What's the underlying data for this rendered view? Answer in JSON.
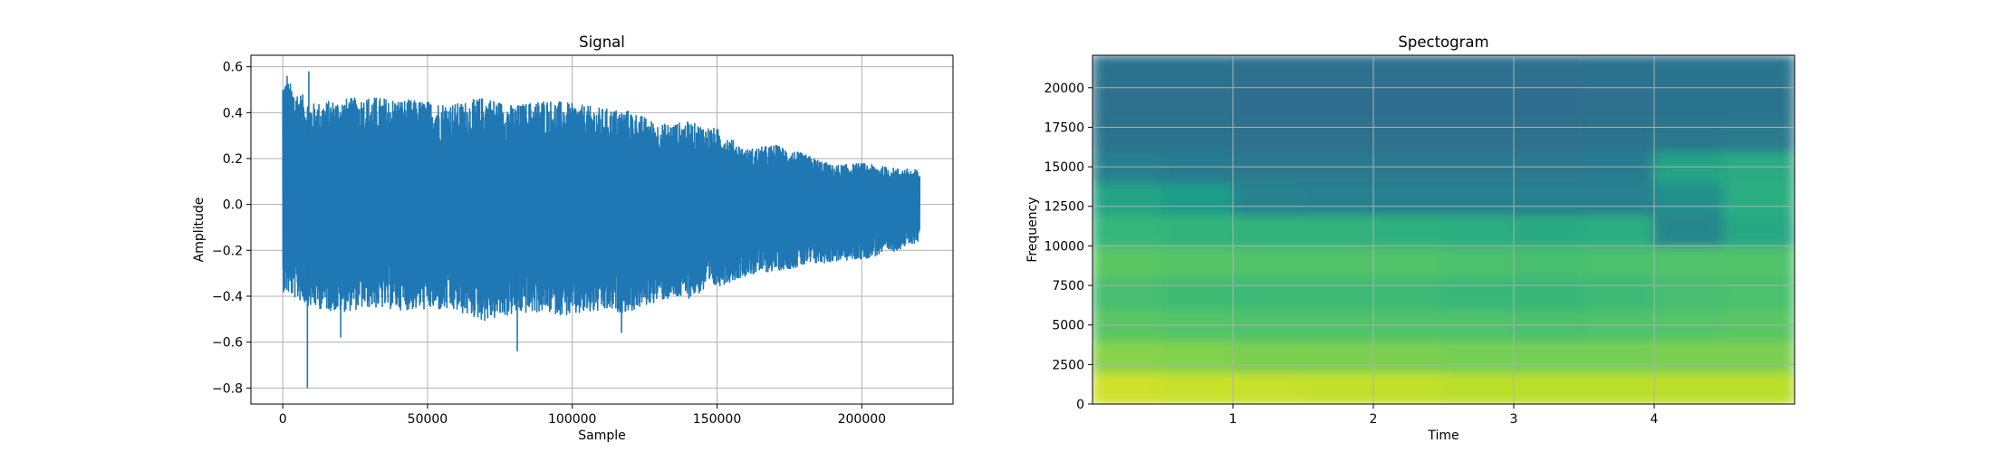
{
  "chart_data": [
    {
      "type": "line",
      "title": "Signal",
      "xlabel": "Sample",
      "ylabel": "Amplitude",
      "xlim": [
        -11000,
        231500
      ],
      "ylim": [
        -0.87,
        0.65
      ],
      "grid": true,
      "color": "#1f77b4",
      "xticks": [
        0,
        50000,
        100000,
        150000,
        200000
      ],
      "xtick_labels": [
        "0",
        "50000",
        "100000",
        "150000",
        "200000"
      ],
      "yticks": [
        -0.8,
        -0.6,
        -0.4,
        -0.2,
        0.0,
        0.2,
        0.4,
        0.6
      ],
      "ytick_labels": [
        "−0.8",
        "−0.6",
        "−0.4",
        "−0.2",
        "0.0",
        "0.2",
        "0.4",
        "0.6"
      ],
      "series": [
        {
          "x": [
            0,
            10000,
            20000,
            30000,
            40000,
            50000,
            60000,
            70000,
            80000,
            90000,
            100000,
            110000,
            120000,
            130000,
            140000,
            150000,
            160000,
            170000,
            180000,
            190000,
            200000,
            210000,
            220000
          ],
          "upper_envelope": [
            0.56,
            0.44,
            0.46,
            0.47,
            0.46,
            0.45,
            0.44,
            0.47,
            0.43,
            0.46,
            0.44,
            0.42,
            0.41,
            0.35,
            0.36,
            0.33,
            0.24,
            0.26,
            0.22,
            0.17,
            0.18,
            0.16,
            0.15
          ],
          "lower_envelope": [
            -0.38,
            -0.45,
            -0.47,
            -0.45,
            -0.46,
            -0.46,
            -0.47,
            -0.51,
            -0.48,
            -0.47,
            -0.49,
            -0.47,
            -0.47,
            -0.42,
            -0.41,
            -0.36,
            -0.31,
            -0.29,
            -0.27,
            -0.25,
            -0.24,
            -0.21,
            -0.16
          ],
          "peaks": [
            {
              "x": 8500,
              "y": -0.8
            },
            {
              "x": 81000,
              "y": -0.64
            },
            {
              "x": 117000,
              "y": -0.56
            },
            {
              "x": 20000,
              "y": -0.58
            },
            {
              "x": 9000,
              "y": 0.58
            },
            {
              "x": 1500,
              "y": 0.56
            }
          ]
        }
      ]
    },
    {
      "type": "heatmap",
      "title": "Spectogram",
      "xlabel": "Time",
      "ylabel": "Frequency",
      "xlim": [
        0,
        5.0
      ],
      "ylim": [
        0,
        22050
      ],
      "grid": true,
      "colormap": "viridis",
      "xticks": [
        1,
        2,
        3,
        4
      ],
      "xtick_labels": [
        "1",
        "2",
        "3",
        "4"
      ],
      "yticks": [
        0,
        2500,
        5000,
        7500,
        10000,
        12500,
        15000,
        17500,
        20000
      ],
      "ytick_labels": [
        "0",
        "2500",
        "5000",
        "7500",
        "10000",
        "12500",
        "15000",
        "17500",
        "20000"
      ],
      "time_bins": [
        0.25,
        0.75,
        1.25,
        1.75,
        2.25,
        2.75,
        3.25,
        3.75,
        4.25,
        4.75
      ],
      "freq_bins": [
        1000,
        3000,
        5000,
        7000,
        9000,
        11000,
        13000,
        15000,
        17000,
        19000,
        21000
      ],
      "levels": [
        [
          0.93,
          0.92,
          0.92,
          0.91,
          0.91,
          0.9,
          0.9,
          0.9,
          0.9,
          0.9
        ],
        [
          0.82,
          0.81,
          0.8,
          0.8,
          0.8,
          0.79,
          0.79,
          0.79,
          0.8,
          0.8
        ],
        [
          0.74,
          0.73,
          0.72,
          0.72,
          0.72,
          0.72,
          0.71,
          0.72,
          0.73,
          0.74
        ],
        [
          0.7,
          0.69,
          0.68,
          0.68,
          0.68,
          0.67,
          0.67,
          0.68,
          0.7,
          0.71
        ],
        [
          0.74,
          0.73,
          0.72,
          0.72,
          0.72,
          0.71,
          0.7,
          0.71,
          0.72,
          0.72
        ],
        [
          0.66,
          0.65,
          0.64,
          0.64,
          0.63,
          0.62,
          0.61,
          0.62,
          0.46,
          0.6
        ],
        [
          0.58,
          0.55,
          0.45,
          0.44,
          0.44,
          0.44,
          0.44,
          0.44,
          0.5,
          0.62
        ],
        [
          0.44,
          0.42,
          0.41,
          0.41,
          0.41,
          0.41,
          0.41,
          0.42,
          0.58,
          0.61
        ],
        [
          0.38,
          0.38,
          0.37,
          0.37,
          0.37,
          0.37,
          0.37,
          0.38,
          0.4,
          0.41
        ],
        [
          0.37,
          0.37,
          0.36,
          0.36,
          0.36,
          0.36,
          0.36,
          0.37,
          0.38,
          0.38
        ],
        [
          0.38,
          0.38,
          0.37,
          0.37,
          0.37,
          0.37,
          0.37,
          0.38,
          0.39,
          0.39
        ]
      ]
    }
  ]
}
